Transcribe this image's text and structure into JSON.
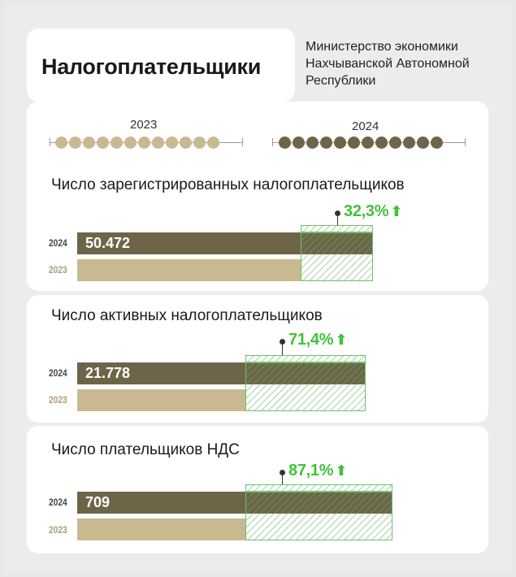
{
  "header": {
    "title": "Налогоплательщики",
    "ministry_line1": "Министерство экономики",
    "ministry_line2": "Нахчыванской Автономной",
    "ministry_line3": "Республики"
  },
  "years": {
    "y2023": "2023",
    "y2024": "2024",
    "dots_2023": 12,
    "dots_2024": 12,
    "color_2023": "#c8b990",
    "color_2024": "#6e6549"
  },
  "chart_data": [
    {
      "type": "bar",
      "title": "Число зарегистрированных налогоплательщиков",
      "categories": [
        "2024",
        "2023"
      ],
      "series": [
        {
          "values": [
            50472,
            38150
          ]
        }
      ],
      "value_label_2024": "50.472",
      "growth_label": "32,3%",
      "growth_arrow": "🡅"
    },
    {
      "type": "bar",
      "title": "Число активных налогоплательщиков",
      "categories": [
        "2024",
        "2023"
      ],
      "series": [
        {
          "values": [
            21778,
            12709
          ]
        }
      ],
      "value_label_2024": "21.778",
      "growth_label": "71,4%",
      "growth_arrow": "🡅"
    },
    {
      "type": "bar",
      "title": "Число плательщиков НДС",
      "categories": [
        "2024",
        "2023"
      ],
      "series": [
        {
          "values": [
            709,
            379
          ]
        }
      ],
      "value_label_2024": "709",
      "growth_label": "87,1%",
      "growth_arrow": "🡅"
    }
  ],
  "colors": {
    "bar_2024": "#6e6549",
    "bar_2023": "#c8b990",
    "growth": "#43c23a"
  }
}
